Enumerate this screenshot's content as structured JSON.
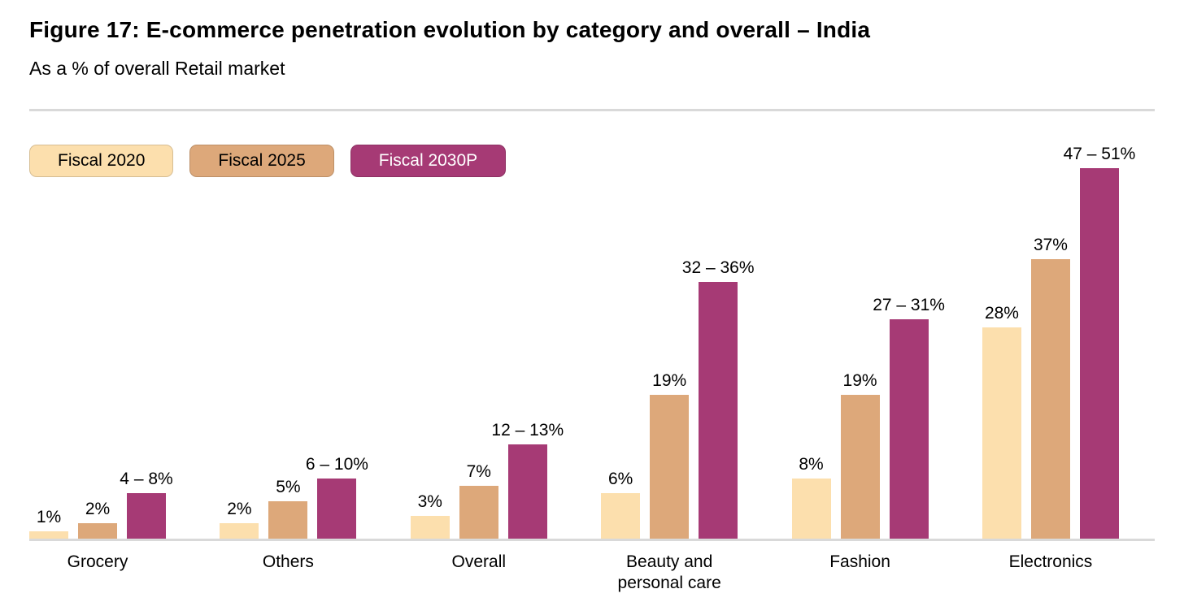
{
  "header": {
    "title": "Figure 17: E-commerce penetration evolution by category and overall – India",
    "subtitle": "As a % of overall Retail market"
  },
  "colors": {
    "fiscal_2020": "#FCDFAD",
    "fiscal_2025": "#DDA87A",
    "fiscal_2030p": "#A63A75",
    "axis_line": "#D9D9D9",
    "label_text": "#000000",
    "badge_2030p_text": "#FFFFFF"
  },
  "legend": {
    "items": [
      {
        "label": "Fiscal 2020",
        "color": "#FCDFAD",
        "text_color": "#000000"
      },
      {
        "label": "Fiscal 2025",
        "color": "#DDA87A",
        "text_color": "#000000"
      },
      {
        "label": "Fiscal 2030P",
        "color": "#A63A75",
        "text_color": "#FFFFFF"
      }
    ]
  },
  "chart_data": {
    "type": "bar",
    "title": "Figure 17: E-commerce penetration evolution by category and overall – India",
    "subtitle": "As a % of overall Retail market",
    "unit": "percent of overall retail market",
    "categories": [
      "Grocery",
      "Others",
      "Overall",
      "Beauty and personal care",
      "Fashion",
      "Electronics"
    ],
    "series": [
      {
        "name": "Fiscal 2020",
        "color": "#FCDFAD",
        "values": [
          1,
          2,
          3,
          6,
          8,
          28
        ],
        "labels": [
          "1%",
          "2%",
          "3%",
          "6%",
          "8%",
          "28%"
        ]
      },
      {
        "name": "Fiscal 2025",
        "color": "#DDA87A",
        "values": [
          2,
          5,
          7,
          19,
          19,
          37
        ],
        "labels": [
          "2%",
          "5%",
          "7%",
          "19%",
          "19%",
          "37%"
        ]
      },
      {
        "name": "Fiscal 2030P",
        "color": "#A63A75",
        "values": [
          6,
          8,
          12.5,
          34,
          29,
          49
        ],
        "ranges": [
          [
            4,
            8
          ],
          [
            6,
            10
          ],
          [
            12,
            13
          ],
          [
            32,
            36
          ],
          [
            27,
            31
          ],
          [
            47,
            51
          ]
        ],
        "labels": [
          "4 – 8%",
          "6 – 10%",
          "12 – 13%",
          "32 – 36%",
          "27 – 31%",
          "47 – 51%"
        ]
      }
    ],
    "ylim": [
      0,
      51
    ],
    "grid": false,
    "y_axis_visible": false,
    "value_labels_visible": true,
    "legend_position": "top-left"
  }
}
